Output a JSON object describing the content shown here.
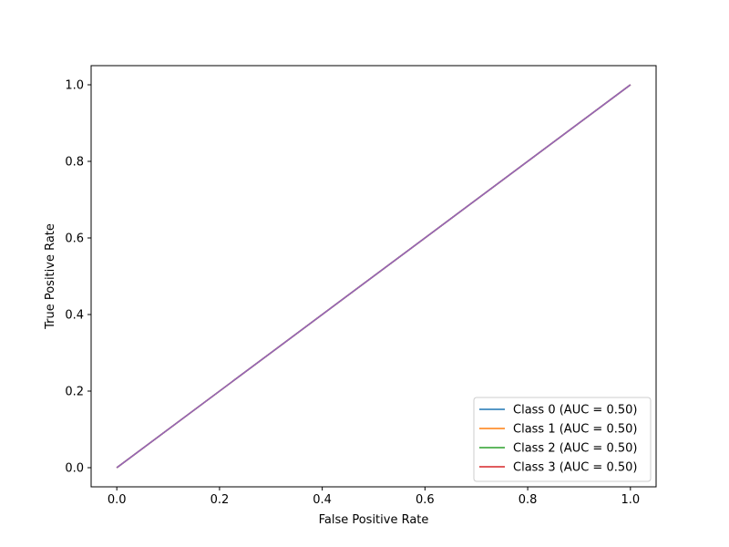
{
  "chart_data": {
    "type": "line",
    "title": "",
    "xlabel": "False Positive Rate",
    "ylabel": "True Positive Rate",
    "xlim": [
      -0.05,
      1.05
    ],
    "ylim": [
      -0.05,
      1.05
    ],
    "xticks": [
      0.0,
      0.2,
      0.4,
      0.6,
      0.8,
      1.0
    ],
    "yticks": [
      0.0,
      0.2,
      0.4,
      0.6,
      0.8,
      1.0
    ],
    "xtick_labels": [
      "0.0",
      "0.2",
      "0.4",
      "0.6",
      "0.8",
      "1.0"
    ],
    "ytick_labels": [
      "0.0",
      "0.2",
      "0.4",
      "0.6",
      "0.8",
      "1.0"
    ],
    "grid": false,
    "legend_position": "lower-right",
    "series": [
      {
        "name": "Class 0 (AUC = 0.50)",
        "x": [
          0.0,
          1.0
        ],
        "y": [
          0.0,
          1.0
        ],
        "color": "#1f77b4",
        "in_legend": true
      },
      {
        "name": "Class 1 (AUC = 0.50)",
        "x": [
          0.0,
          1.0
        ],
        "y": [
          0.0,
          1.0
        ],
        "color": "#ff7f0e",
        "in_legend": true
      },
      {
        "name": "Class 2 (AUC = 0.50)",
        "x": [
          0.0,
          1.0
        ],
        "y": [
          0.0,
          1.0
        ],
        "color": "#2ca02c",
        "in_legend": true
      },
      {
        "name": "Class 3 (AUC = 0.50)",
        "x": [
          0.0,
          1.0
        ],
        "y": [
          0.0,
          1.0
        ],
        "color": "#d62728",
        "in_legend": true
      },
      {
        "name": "",
        "x": [
          0.0,
          1.0
        ],
        "y": [
          0.0,
          1.0
        ],
        "color": "#9467bd",
        "in_legend": false
      }
    ]
  }
}
